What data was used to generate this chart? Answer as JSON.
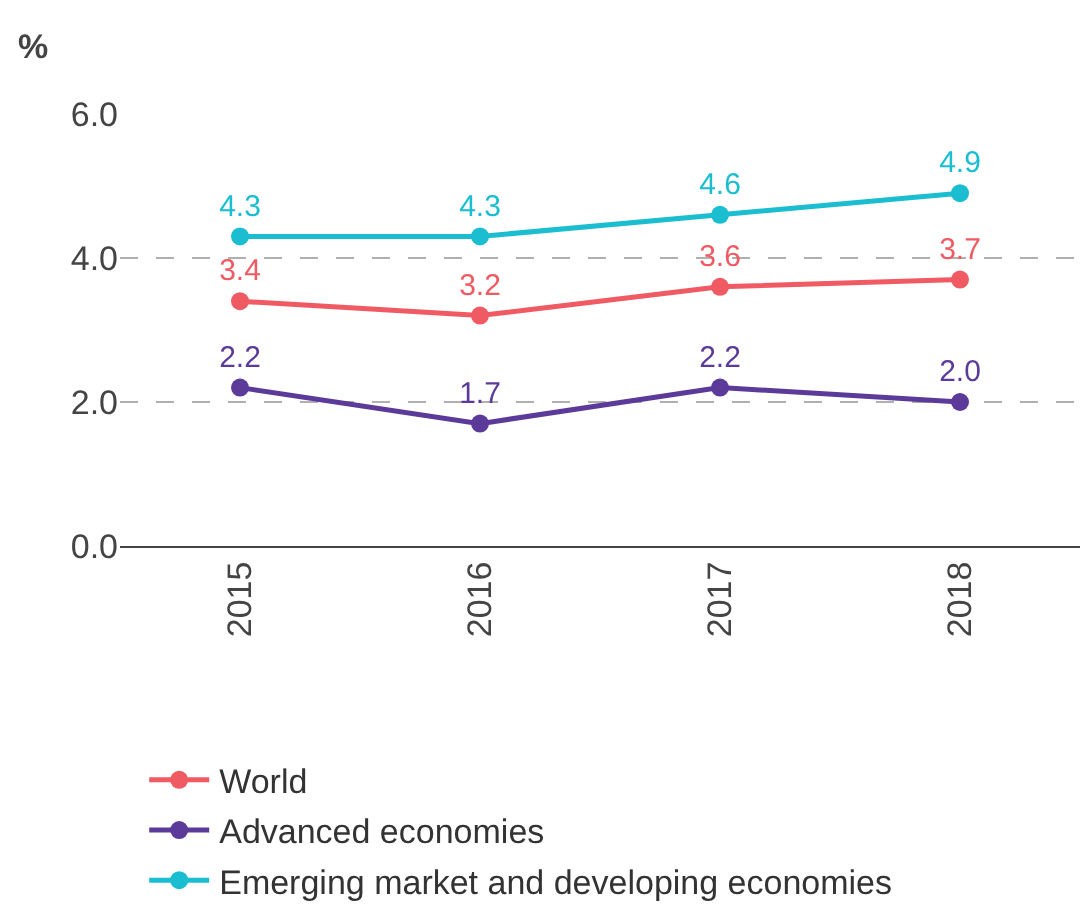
{
  "chart_data": {
    "type": "line",
    "ylabel": "%",
    "categories": [
      "2015",
      "2016",
      "2017",
      "2018"
    ],
    "series": [
      {
        "name": "World",
        "color": "#ef5a63",
        "values": [
          3.4,
          3.2,
          3.6,
          3.7
        ],
        "value_labels": [
          "3.4",
          "3.2",
          "3.6",
          "3.7"
        ]
      },
      {
        "name": "Advanced economies",
        "color": "#5b3a9a",
        "values": [
          2.2,
          1.7,
          2.2,
          2.0
        ],
        "value_labels": [
          "2.2",
          "1.7",
          "2.2",
          "2.0"
        ]
      },
      {
        "name": "Emerging market and developing economies",
        "color": "#1bbdd0",
        "values": [
          4.3,
          4.3,
          4.6,
          4.9
        ],
        "value_labels": [
          "4.3",
          "4.3",
          "4.6",
          "4.9"
        ]
      }
    ],
    "ylim": [
      0,
      6
    ],
    "yticks": [
      {
        "value": 0,
        "label": "0.0"
      },
      {
        "value": 2,
        "label": "2.0"
      },
      {
        "value": 4,
        "label": "4.0"
      },
      {
        "value": 6,
        "label": "6.0"
      }
    ],
    "grid": "y",
    "legend": "bottom",
    "marker": "circle",
    "line_style": "solid"
  }
}
